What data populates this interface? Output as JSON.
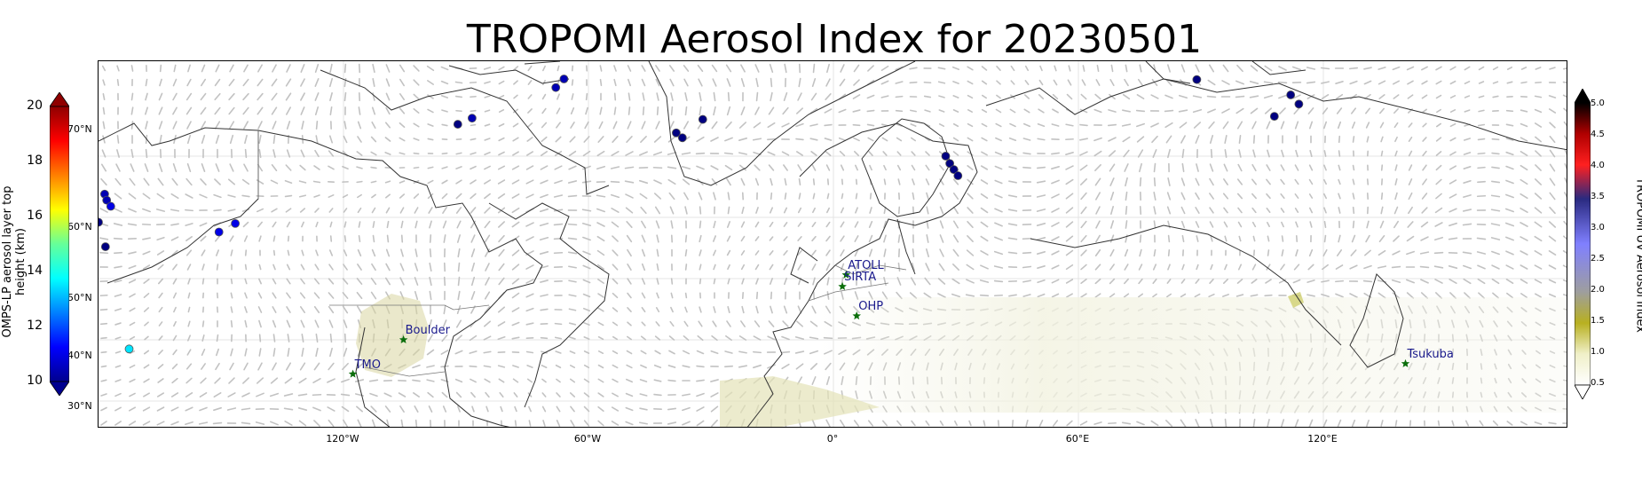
{
  "title": "TROPOMI Aerosol Index for 20230501",
  "map": {
    "lon_labels": [
      "120°W",
      "60°W",
      "0°",
      "60°E",
      "120°E"
    ],
    "lat_labels": [
      "70°N",
      "60°N",
      "50°N",
      "40°N",
      "30°N"
    ]
  },
  "left_colorbar": {
    "label": "OMPS-LP aerosol layer top height (km)",
    "ticks": [
      "20",
      "18",
      "16",
      "14",
      "12",
      "10"
    ],
    "colormap": "jet"
  },
  "right_colorbar": {
    "label": "TROPOMI UV Aerosol Index",
    "ticks": [
      "5.0",
      "4.5",
      "4.0",
      "3.5",
      "3.0",
      "2.5",
      "2.0",
      "1.5",
      "1.0",
      "0.5"
    ]
  },
  "sites": [
    {
      "name": "ATOLL",
      "lon": 3.1,
      "lat": 50.6
    },
    {
      "name": "SIRTA",
      "lon": 2.2,
      "lat": 48.7
    },
    {
      "name": "OHP",
      "lon": 5.7,
      "lat": 43.9
    },
    {
      "name": "Boulder",
      "lon": -105.3,
      "lat": 40.0
    },
    {
      "name": "TMO",
      "lon": -117.7,
      "lat": 34.4
    },
    {
      "name": "Tsukuba",
      "lon": 140.1,
      "lat": 36.1
    }
  ],
  "omps_points": [
    {
      "lon": -180.0,
      "lat": 59.2,
      "height_km": 10.0
    },
    {
      "lon": -178.5,
      "lat": 63.8,
      "height_km": 10.5
    },
    {
      "lon": -178.0,
      "lat": 62.8,
      "height_km": 10.5
    },
    {
      "lon": -177.0,
      "lat": 61.8,
      "height_km": 11.0
    },
    {
      "lon": -178.3,
      "lat": 55.2,
      "height_km": 10.0
    },
    {
      "lon": -172.5,
      "lat": 38.5,
      "height_km": 13.5
    },
    {
      "lon": -150.5,
      "lat": 57.6,
      "height_km": 11.0
    },
    {
      "lon": -146.5,
      "lat": 59.0,
      "height_km": 11.0
    },
    {
      "lon": -92.0,
      "lat": 75.2,
      "height_km": 10.0
    },
    {
      "lon": -88.5,
      "lat": 76.2,
      "height_km": 10.5
    },
    {
      "lon": -68.0,
      "lat": 81.2,
      "height_km": 10.5
    },
    {
      "lon": -66.0,
      "lat": 82.6,
      "height_km": 10.5
    },
    {
      "lon": -38.5,
      "lat": 73.8,
      "height_km": 10.0
    },
    {
      "lon": -37.0,
      "lat": 73.0,
      "height_km": 10.0
    },
    {
      "lon": -32.0,
      "lat": 76.0,
      "height_km": 10.0
    },
    {
      "lon": 89.0,
      "lat": 82.5,
      "height_km": 10.0
    },
    {
      "lon": 108.0,
      "lat": 76.5,
      "height_km": 10.0
    },
    {
      "lon": 112.0,
      "lat": 80.0,
      "height_km": 10.0
    },
    {
      "lon": 114.0,
      "lat": 78.5,
      "height_km": 10.0
    },
    {
      "lon": 27.5,
      "lat": 70.0,
      "height_km": 10.0
    },
    {
      "lon": 28.5,
      "lat": 68.8,
      "height_km": 10.0
    },
    {
      "lon": 29.5,
      "lat": 67.8,
      "height_km": 10.0
    },
    {
      "lon": 30.5,
      "lat": 66.8,
      "height_km": 10.0
    }
  ],
  "colors": {
    "site_marker": "#0b6e0b",
    "site_label": "#1a1a8c",
    "coastline": "#333333",
    "wind_arrows": "#c2c2c2",
    "gridline": "#e4e4e4"
  }
}
